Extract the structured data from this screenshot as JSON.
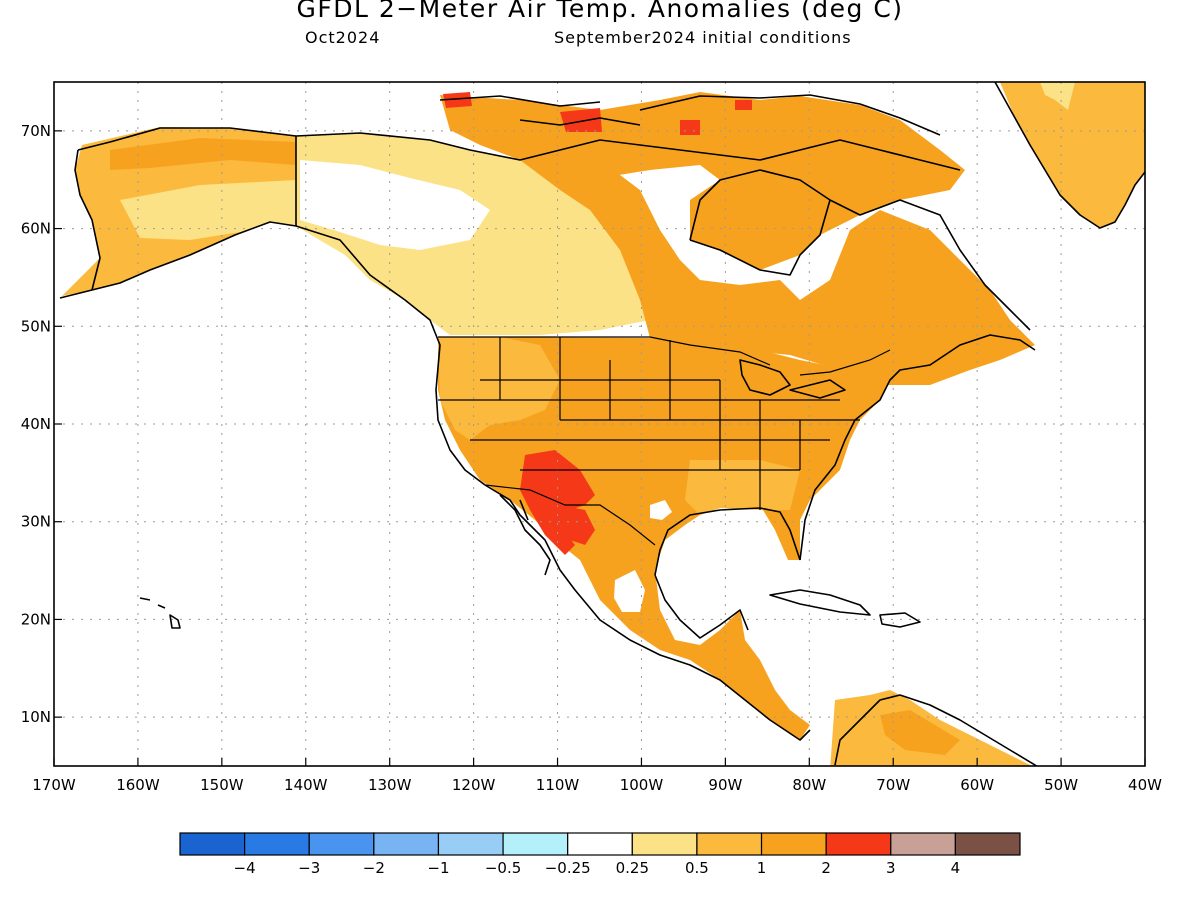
{
  "title": "GFDL 2−Meter Air Temp. Anomalies (deg C)",
  "subtitle_left": "Oct2024",
  "subtitle_right": "September2024 initial conditions",
  "map": {
    "projection": "cylindrical",
    "lon_range": [
      -170,
      -40
    ],
    "lat_range": [
      5,
      75
    ],
    "grid": "dotted",
    "lat_ticks": [
      "70N",
      "60N",
      "50N",
      "40N",
      "30N",
      "20N",
      "10N"
    ],
    "lon_ticks": [
      "170W",
      "160W",
      "150W",
      "140W",
      "130W",
      "120W",
      "110W",
      "100W",
      "90W",
      "80W",
      "70W",
      "60W",
      "50W",
      "40W"
    ]
  },
  "colorbar": {
    "colors": [
      "#1a64d2",
      "#2a7ae6",
      "#4894ee",
      "#78b4f4",
      "#98cef6",
      "#b4f0fa",
      "#ffffff",
      "#fce286",
      "#fbb93d",
      "#f7a21f",
      "#f53918",
      "#c8a096",
      "#7b5145"
    ],
    "labels": [
      "−4",
      "−3",
      "−2",
      "−1",
      "−0.5",
      "−0.25",
      "0.25",
      "0.5",
      "1",
      "2",
      "3",
      "4"
    ]
  },
  "regions": [
    {
      "name": "alaska",
      "category": "1 to 2"
    },
    {
      "name": "western-canada",
      "category": "0.25 to 0.5"
    },
    {
      "name": "eastern-canada",
      "category": "1 to 2"
    },
    {
      "name": "united-states",
      "category": "1 to 2"
    },
    {
      "name": "southwest-us-northwest-mexico",
      "category": "2 to 3"
    },
    {
      "name": "central-america",
      "category": "1 to 2"
    },
    {
      "name": "northern-south-america",
      "category": "1 to 2"
    },
    {
      "name": "greenland",
      "category": "0.5 to 1"
    }
  ]
}
